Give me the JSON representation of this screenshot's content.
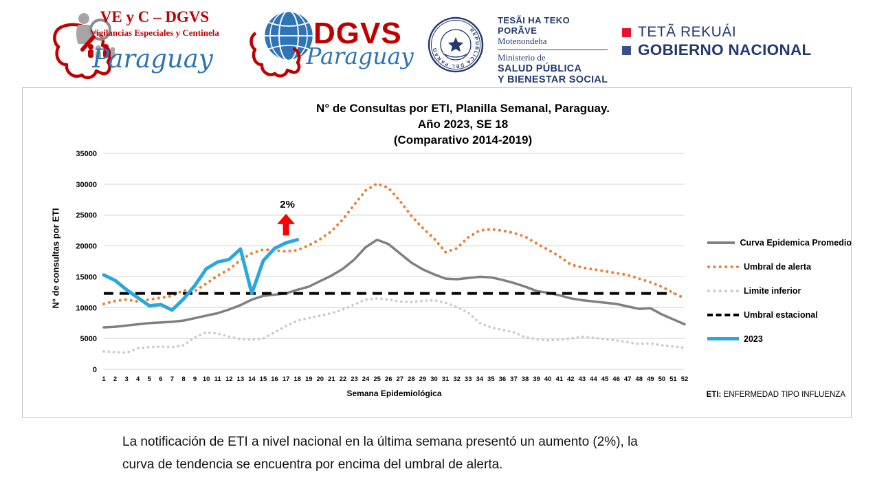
{
  "header": {
    "logo_vec": {
      "title": "VE y C – DGVS",
      "subtitle": "Vigilancias Especiales y Centinela",
      "country": "Paraguay"
    },
    "logo_dgvs": {
      "title": "DGVS",
      "country": "Paraguay"
    },
    "logo_msp": {
      "line1": "TESÃI HA TEKO",
      "line2": "PORÃVE",
      "line3": "Motenondeha",
      "line4": "Ministerio de",
      "line5": "SALUD PÚBLICA",
      "line6": "Y BIENESTAR SOCIAL",
      "seal_text": "REPUBLICA DEL PARAGUAY"
    },
    "logo_gob": {
      "line1": "TETÃ REKUÁI",
      "line2": "GOBIERNO NACIONAL",
      "red_square": "#E8112D",
      "blue_square": "#3C4E8C"
    }
  },
  "chart": {
    "title_line1": "N° de Consultas por ETI, Planilla Semanal, Paraguay.",
    "title_line2": "Año 2023, SE 18",
    "title_line3": "(Comparativo 2014-2019)",
    "y_axis_label": "N° de consultas por ETI",
    "x_axis_label": "Semana Epidemiológica",
    "footnote_bold": "ETI:",
    "footnote_rest": " ENFERMEDAD TIPO INFLUENZA"
  },
  "chart_data": {
    "type": "line",
    "title": "N° de Consultas por ETI, Planilla Semanal, Paraguay. Año 2023, SE 18 (Comparativo 2014-2019)",
    "xlabel": "Semana Epidemiológica",
    "ylabel": "N° de consultas por ETI",
    "ylim": [
      0,
      35000
    ],
    "y_ticks": [
      0,
      5000,
      10000,
      15000,
      20000,
      25000,
      30000,
      35000
    ],
    "grid": "horizontal",
    "legend_position": "right",
    "x": [
      1,
      2,
      3,
      4,
      5,
      6,
      7,
      8,
      9,
      10,
      11,
      12,
      13,
      14,
      15,
      16,
      17,
      18,
      19,
      20,
      21,
      22,
      23,
      24,
      25,
      26,
      27,
      28,
      29,
      30,
      31,
      32,
      33,
      34,
      35,
      36,
      37,
      38,
      39,
      40,
      41,
      42,
      43,
      44,
      45,
      46,
      47,
      48,
      49,
      50,
      51,
      52
    ],
    "series": [
      {
        "name": "Curva Epidemica Promedio",
        "color": "#7F7F7F",
        "style": "solid",
        "width": 3.5,
        "values": [
          6800,
          6900,
          7100,
          7300,
          7500,
          7600,
          7700,
          7900,
          8300,
          8700,
          9100,
          9700,
          10400,
          11300,
          11900,
          12100,
          12300,
          12900,
          13400,
          14300,
          15200,
          16300,
          17800,
          19800,
          21000,
          20300,
          18800,
          17300,
          16200,
          15400,
          14700,
          14600,
          14800,
          15000,
          14900,
          14500,
          14000,
          13400,
          12700,
          12400,
          12000,
          11500,
          11200,
          11000,
          10800,
          10600,
          10200,
          9800,
          9900,
          8900,
          8100,
          7300
        ]
      },
      {
        "name": "Umbral de alerta",
        "color": "#ED7D31",
        "style": "dotted",
        "width": 4,
        "values": [
          10600,
          11100,
          11300,
          11000,
          11300,
          11600,
          11900,
          12800,
          12700,
          13900,
          15200,
          16200,
          17700,
          18800,
          19400,
          19300,
          19100,
          19300,
          20100,
          21100,
          22400,
          24300,
          26700,
          29000,
          30100,
          29400,
          27300,
          24900,
          22900,
          21200,
          19000,
          19600,
          21400,
          22500,
          22700,
          22500,
          22100,
          21500,
          20400,
          19400,
          18300,
          17000,
          16500,
          16200,
          15900,
          15600,
          15300,
          14700,
          14100,
          13400,
          12400,
          11500
        ]
      },
      {
        "name": "Limite inferior",
        "color": "#C9C9C9",
        "style": "dotted",
        "width": 3.6,
        "values": [
          2900,
          2800,
          2700,
          3400,
          3600,
          3700,
          3600,
          3900,
          5200,
          6000,
          5800,
          5300,
          4900,
          4800,
          5000,
          6000,
          7000,
          7900,
          8300,
          8700,
          9100,
          9700,
          10500,
          11300,
          11500,
          11300,
          11000,
          10900,
          11100,
          11200,
          10800,
          10100,
          9200,
          7500,
          6800,
          6400,
          6000,
          5200,
          4900,
          4700,
          4800,
          5000,
          5300,
          5100,
          4900,
          4700,
          4400,
          4100,
          4200,
          3900,
          3700,
          3500
        ]
      },
      {
        "name": "Umbral estacional",
        "color": "#000000",
        "style": "dashed",
        "width": 4,
        "constant": 12300,
        "from_week": 1,
        "to_week": 51
      },
      {
        "name": "2023",
        "color": "#29A8E0",
        "style": "solid",
        "width": 5,
        "values": [
          15300,
          14400,
          12900,
          11600,
          10300,
          10500,
          9600,
          11400,
          13600,
          16300,
          17400,
          17800,
          19500,
          12300,
          17600,
          19600,
          20500,
          21000
        ]
      }
    ],
    "annotation": {
      "label": "2%",
      "week": 17,
      "arrow_from": 21700,
      "arrow_to": 25200,
      "color": "#FF0000"
    }
  },
  "analysis": {
    "text": "La notificación de ETI a nivel nacional en la última semana presentó un aumento (2%), la curva de tendencia se encuentra por encima del umbral de alerta."
  }
}
